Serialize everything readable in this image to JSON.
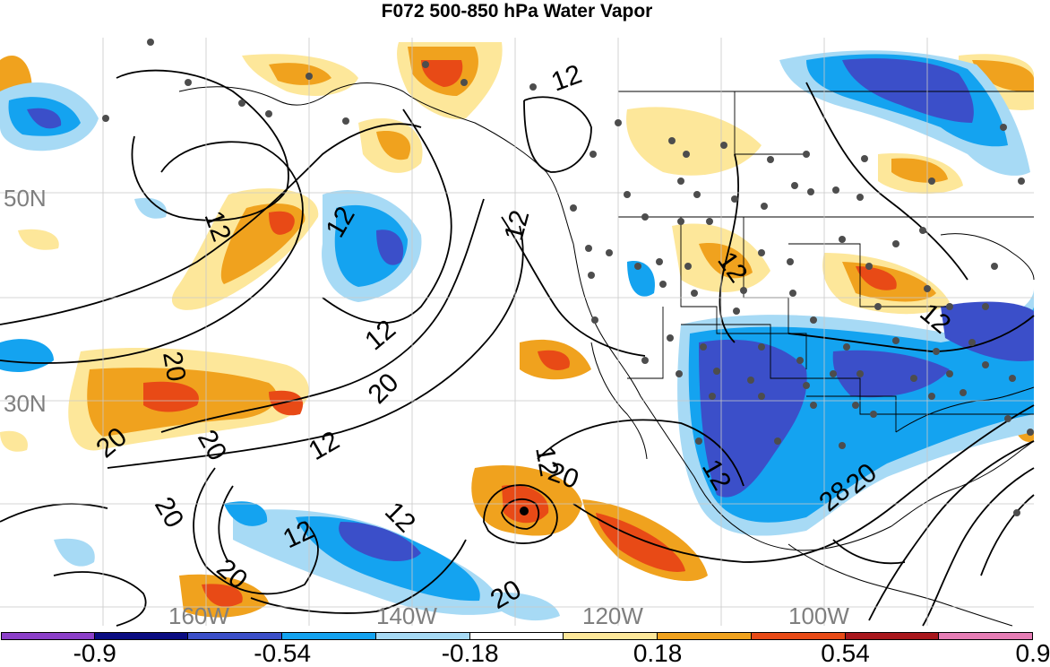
{
  "title": "F072 500-850 hPa Water Vapor",
  "map": {
    "lat_labels": [
      "50N",
      "30N"
    ],
    "lon_labels": [
      "160W",
      "140W",
      "120W",
      "100W"
    ],
    "contour_labels": [
      "12",
      "12",
      "12",
      "12",
      "12",
      "12",
      "12",
      "12",
      "12",
      "12",
      "12",
      "12",
      "20",
      "20",
      "20",
      "20",
      "20",
      "20",
      "20",
      "20",
      "20",
      "28"
    ],
    "label_color": "#7f7f7f"
  },
  "colorbar": {
    "colors": [
      "#8c3fc9",
      "#0a0c82",
      "#3b4fc9",
      "#14a3f0",
      "#a7daf5",
      "#ffffff",
      "#fde79a",
      "#f0a21e",
      "#e84a16",
      "#a8161c",
      "#e67db5"
    ],
    "tick_labels": [
      "-0.9",
      "-0.54",
      "-0.18",
      "0.18",
      "0.54",
      "0.9"
    ]
  }
}
